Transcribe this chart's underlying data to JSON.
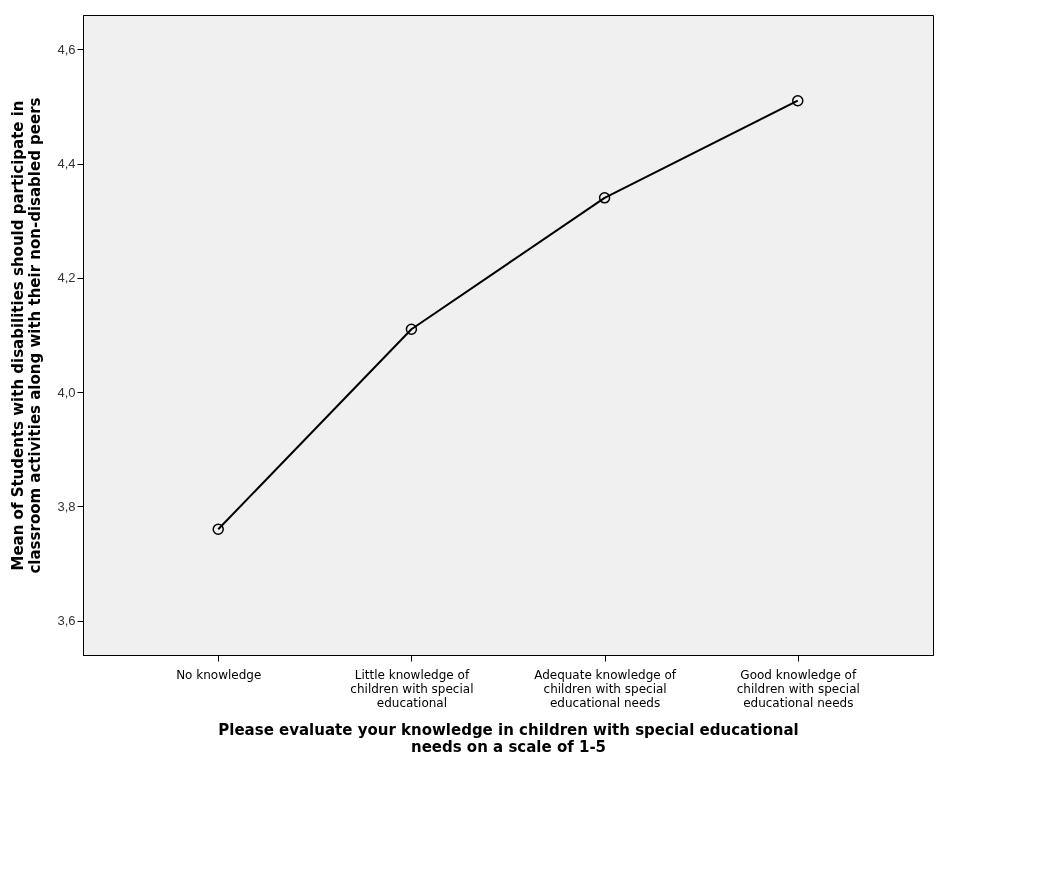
{
  "chart_data": {
    "type": "line",
    "xlabel": "Please evaluate your knowledge in children with special educational needs on a scale of 1-5",
    "ylabel": "Mean of Students with disabilities should participate in classroom activities along with their non-disabled peers",
    "categories": [
      "No knowledge",
      "Little knowledge of children with special educational",
      "Adequate knowledge of children with special educational needs",
      "Good knowledge of children with special educational needs"
    ],
    "series": [
      {
        "color": "#000000",
        "values": [
          3.76,
          4.11,
          4.34,
          4.51
        ]
      }
    ],
    "ylim": [
      3.54,
      4.66
    ],
    "yticks": [
      {
        "value": 3.6,
        "label": "3,6"
      },
      {
        "value": 3.8,
        "label": "3,8"
      },
      {
        "value": 4.0,
        "label": "4,0"
      },
      {
        "value": 4.2,
        "label": "4,2"
      },
      {
        "value": 4.4,
        "label": "4,4"
      },
      {
        "value": 4.6,
        "label": "4,6"
      }
    ],
    "marker": "circle",
    "line_style": "solid",
    "grid": false
  }
}
